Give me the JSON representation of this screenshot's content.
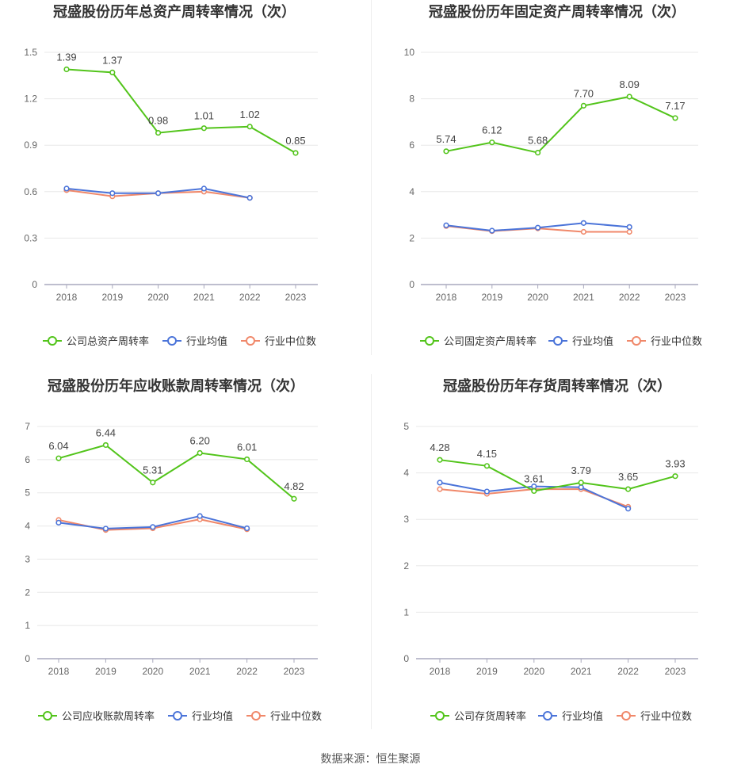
{
  "colors": {
    "company": "#52c41a",
    "avg": "#4b74d9",
    "median": "#f0886a",
    "grid": "#e8e8e8",
    "axis": "#a9a9bd",
    "text": "#333333",
    "tick": "#666666"
  },
  "footer": "数据来源：恒生聚源",
  "chart_data": [
    {
      "type": "line",
      "title": "冠盛股份历年总资产周转率情况（次）",
      "categories": [
        "2018",
        "2019",
        "2020",
        "2021",
        "2022",
        "2023"
      ],
      "ylim": [
        0,
        1.5
      ],
      "yticks": [
        "0",
        "0.3",
        "0.6",
        "0.9",
        "1.2",
        "1.5"
      ],
      "grid": true,
      "legend_position": "bottom",
      "series": [
        {
          "name": "公司总资产周转率",
          "values": [
            1.39,
            1.37,
            0.98,
            1.01,
            1.02,
            0.85
          ],
          "labels": [
            "1.39",
            "1.37",
            "0.98",
            "1.01",
            "1.02",
            "0.85"
          ]
        },
        {
          "name": "行业均值",
          "values": [
            0.62,
            0.59,
            0.59,
            0.62,
            0.56,
            null
          ]
        },
        {
          "name": "行业中位数",
          "values": [
            0.61,
            0.57,
            0.59,
            0.6,
            0.56,
            null
          ]
        }
      ]
    },
    {
      "type": "line",
      "title": "冠盛股份历年固定资产周转率情况（次）",
      "categories": [
        "2018",
        "2019",
        "2020",
        "2021",
        "2022",
        "2023"
      ],
      "ylim": [
        0,
        10
      ],
      "yticks": [
        "0",
        "2",
        "4",
        "6",
        "8",
        "10"
      ],
      "grid": true,
      "legend_position": "bottom",
      "series": [
        {
          "name": "公司固定资产周转率",
          "values": [
            5.74,
            6.12,
            5.68,
            7.7,
            8.09,
            7.17
          ],
          "labels": [
            "5.74",
            "6.12",
            "5.68",
            "7.70",
            "8.09",
            "7.17"
          ]
        },
        {
          "name": "行业均值",
          "values": [
            2.55,
            2.32,
            2.45,
            2.65,
            2.48,
            null
          ]
        },
        {
          "name": "行业中位数",
          "values": [
            2.52,
            2.3,
            2.42,
            2.27,
            2.27,
            null
          ]
        }
      ]
    },
    {
      "type": "line",
      "title": "冠盛股份历年应收账款周转率情况（次）",
      "categories": [
        "2018",
        "2019",
        "2020",
        "2021",
        "2022",
        "2023"
      ],
      "ylim": [
        0,
        7
      ],
      "yticks": [
        "0",
        "1",
        "2",
        "3",
        "4",
        "5",
        "6",
        "7"
      ],
      "grid": true,
      "legend_position": "bottom",
      "series": [
        {
          "name": "公司应收账款周转率",
          "values": [
            6.04,
            6.44,
            5.31,
            6.2,
            6.01,
            4.82
          ],
          "labels": [
            "6.04",
            "6.44",
            "5.31",
            "6.20",
            "6.01",
            "4.82"
          ]
        },
        {
          "name": "行业均值",
          "values": [
            4.1,
            3.92,
            3.97,
            4.3,
            3.93,
            null
          ]
        },
        {
          "name": "行业中位数",
          "values": [
            4.18,
            3.88,
            3.93,
            4.2,
            3.9,
            null
          ]
        }
      ]
    },
    {
      "type": "line",
      "title": "冠盛股份历年存货周转率情况（次）",
      "categories": [
        "2018",
        "2019",
        "2020",
        "2021",
        "2022",
        "2023"
      ],
      "ylim": [
        0,
        5
      ],
      "yticks": [
        "0",
        "1",
        "2",
        "3",
        "4",
        "5"
      ],
      "grid": true,
      "legend_position": "bottom",
      "series": [
        {
          "name": "公司存货周转率",
          "values": [
            4.28,
            4.15,
            3.61,
            3.79,
            3.65,
            3.93
          ],
          "labels": [
            "4.28",
            "4.15",
            "3.61",
            "3.79",
            "3.65",
            "3.93"
          ]
        },
        {
          "name": "行业均值",
          "values": [
            3.79,
            3.6,
            3.71,
            3.69,
            3.23,
            null
          ]
        },
        {
          "name": "行业中位数",
          "values": [
            3.65,
            3.55,
            3.65,
            3.65,
            3.27,
            null
          ]
        }
      ]
    }
  ]
}
